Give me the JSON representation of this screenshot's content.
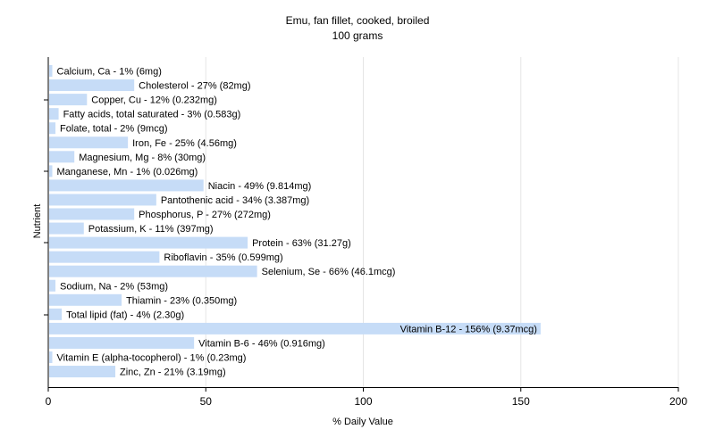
{
  "chart_data": {
    "type": "bar",
    "orientation": "horizontal",
    "title": "Emu, fan fillet, cooked, broiled",
    "subtitle": "100 grams",
    "xlabel": "% Daily Value",
    "ylabel": "Nutrient",
    "xlim": [
      0,
      200
    ],
    "xticks": [
      0,
      50,
      100,
      150,
      200
    ],
    "grid": true,
    "bar_color": "#c6dcf7",
    "grid_color": "#e6e6e6",
    "categories": [
      "Calcium, Ca",
      "Cholesterol",
      "Copper, Cu",
      "Fatty acids, total saturated",
      "Folate, total",
      "Iron, Fe",
      "Magnesium, Mg",
      "Manganese, Mn",
      "Niacin",
      "Pantothenic acid",
      "Phosphorus, P",
      "Potassium, K",
      "Protein",
      "Riboflavin",
      "Selenium, Se",
      "Sodium, Na",
      "Thiamin",
      "Total lipid (fat)",
      "Vitamin B-12",
      "Vitamin B-6",
      "Vitamin E (alpha-tocopherol)",
      "Zinc, Zn"
    ],
    "values": [
      1,
      27,
      12,
      3,
      2,
      25,
      8,
      1,
      49,
      34,
      27,
      11,
      63,
      35,
      66,
      2,
      23,
      4,
      156,
      46,
      1,
      21
    ],
    "labels": [
      "Calcium, Ca - 1% (6mg)",
      "Cholesterol - 27% (82mg)",
      "Copper, Cu - 12% (0.232mg)",
      "Fatty acids, total saturated - 3% (0.583g)",
      "Folate, total - 2% (9mcg)",
      "Iron, Fe - 25% (4.56mg)",
      "Magnesium, Mg - 8% (30mg)",
      "Manganese, Mn - 1% (0.026mg)",
      "Niacin - 49% (9.814mg)",
      "Pantothenic acid - 34% (3.387mg)",
      "Phosphorus, P - 27% (272mg)",
      "Potassium, K - 11% (397mg)",
      "Protein - 63% (31.27g)",
      "Riboflavin - 35% (0.599mg)",
      "Selenium, Se - 66% (46.1mcg)",
      "Sodium, Na - 2% (53mg)",
      "Thiamin - 23% (0.350mg)",
      "Total lipid (fat) - 4% (2.30g)",
      "Vitamin B-12 - 156% (9.37mcg)",
      "Vitamin B-6 - 46% (0.916mg)",
      "Vitamin E (alpha-tocopherol) - 1% (0.23mg)",
      "Zinc, Zn - 21% (3.19mg)"
    ]
  }
}
